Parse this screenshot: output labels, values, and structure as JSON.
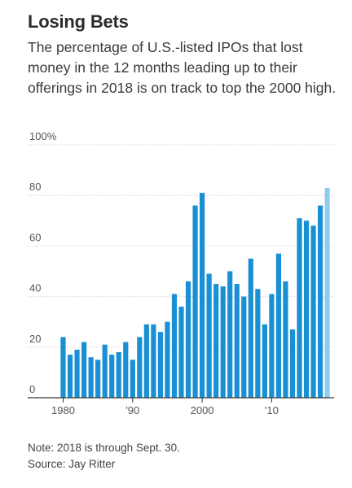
{
  "title": "Losing Bets",
  "subtitle": "The percentage of U.S.-listed IPOs that lost money in the 12 months leading up to their offerings in 2018 is on track to top the 2000 high.",
  "note": "Note: 2018 is through Sept. 30.",
  "source": "Source: Jay Ritter",
  "colors": {
    "bar": "#1a90d4",
    "highlight": "#8fcdee",
    "grid": "#d9d9d9",
    "axis": "#333333"
  },
  "chart_data": {
    "type": "bar",
    "x": [
      1980,
      1981,
      1982,
      1983,
      1984,
      1985,
      1986,
      1987,
      1988,
      1989,
      1990,
      1991,
      1992,
      1993,
      1994,
      1995,
      1996,
      1997,
      1998,
      1999,
      2000,
      2001,
      2002,
      2003,
      2004,
      2005,
      2006,
      2007,
      2008,
      2009,
      2010,
      2011,
      2012,
      2013,
      2014,
      2015,
      2016,
      2017,
      2018
    ],
    "values": [
      24,
      17,
      19,
      22,
      16,
      15,
      21,
      17,
      18,
      22,
      15,
      24,
      29,
      29,
      26,
      30,
      41,
      36,
      46,
      76,
      81,
      49,
      45,
      44,
      50,
      45,
      40,
      55,
      43,
      29,
      41,
      57,
      46,
      27,
      71,
      70,
      68,
      76,
      83
    ],
    "highlight_last": true,
    "ylim": [
      0,
      100
    ],
    "yticks": [
      0,
      20,
      40,
      60,
      80,
      100
    ],
    "ytick_labels": [
      "0",
      "20",
      "40",
      "60",
      "80",
      "100%"
    ],
    "xtick_years": [
      1980,
      1990,
      2000,
      2010
    ],
    "xtick_labels": [
      "1980",
      "'90",
      "2000",
      "'10"
    ],
    "grid": true
  }
}
